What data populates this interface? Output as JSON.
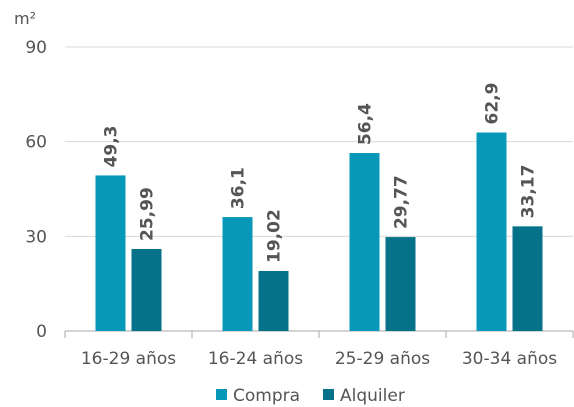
{
  "chart_data": {
    "type": "bar",
    "unit": "m²",
    "categories": [
      "16-29 años",
      "16-24 años",
      "25-29 años",
      "30-34 años"
    ],
    "series": [
      {
        "name": "Compra",
        "values": [
          49.3,
          36.1,
          56.4,
          62.9
        ],
        "labels": [
          "49,3",
          "36,1",
          "56,4",
          "62,9"
        ],
        "color": "#0798B9"
      },
      {
        "name": "Alquiler",
        "values": [
          25.99,
          19.02,
          29.77,
          33.17
        ],
        "labels": [
          "25,99",
          "19,02",
          "29,77",
          "33,17"
        ],
        "color": "#06728A"
      }
    ],
    "ylim": [
      0,
      90
    ],
    "yticks": [
      0,
      30,
      60,
      90
    ],
    "ytick_labels": [
      "0",
      "30",
      "60",
      "90"
    ],
    "grid": true,
    "legend_position": "bottom"
  }
}
